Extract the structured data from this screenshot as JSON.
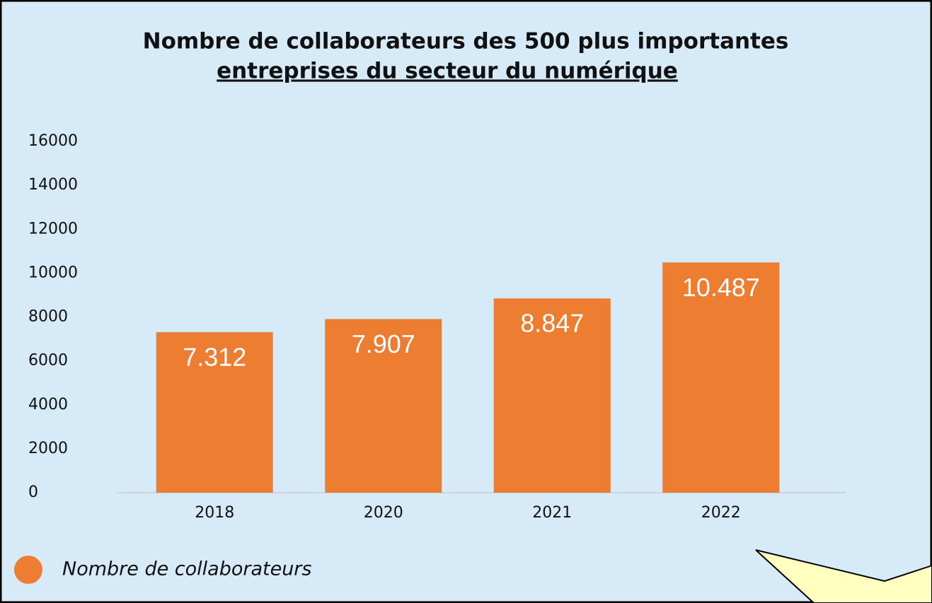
{
  "chart_data": {
    "type": "bar",
    "title": [
      "Nombre de collaborateurs des 500 plus importantes",
      "entreprises du secteur du numérique"
    ],
    "categories": [
      "2018",
      "2020",
      "2021",
      "2022"
    ],
    "series": [
      {
        "name": "Nombre de collaborateurs",
        "color": "#ed7d31",
        "values": [
          7312,
          7907,
          8847,
          10487
        ],
        "value_labels": [
          "7.312",
          "7.907",
          "8.847",
          "10.487"
        ]
      }
    ],
    "ylim": [
      0,
      16000
    ],
    "yticks": [
      0,
      2000,
      4000,
      6000,
      8000,
      10000,
      12000,
      14000,
      16000
    ],
    "grid": false,
    "legend": "bottom-left"
  }
}
